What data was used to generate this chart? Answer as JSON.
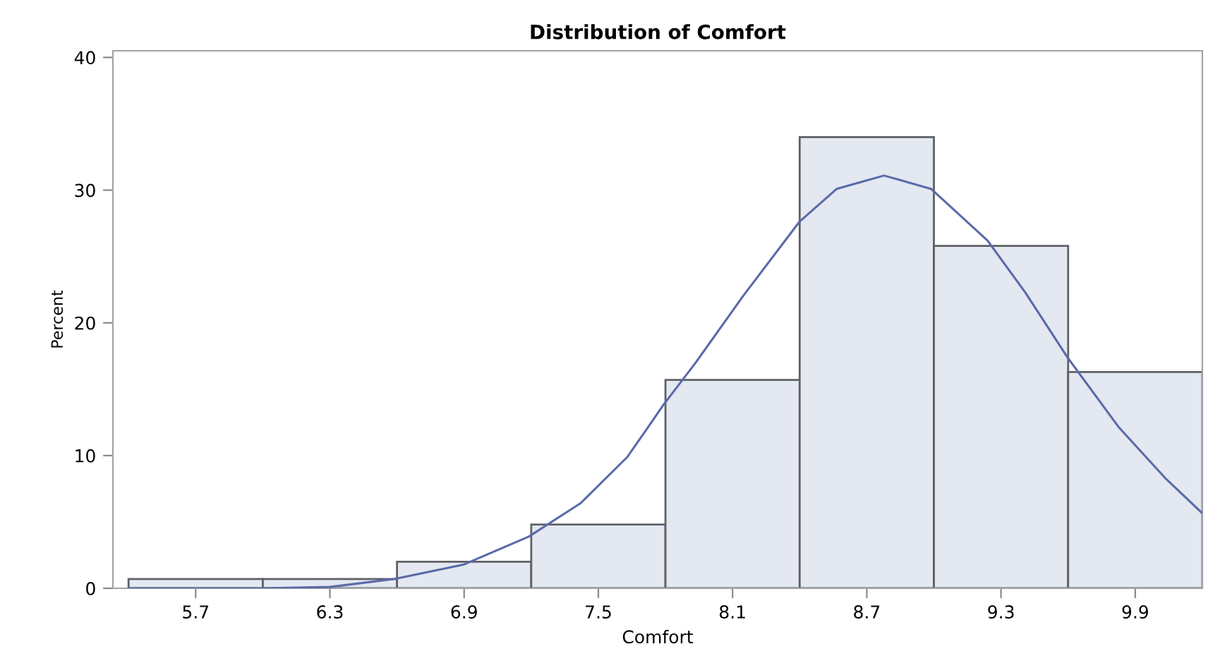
{
  "chart_data": {
    "type": "histogram",
    "title": "Distribution of Comfort",
    "xlabel": "Comfort",
    "ylabel": "Percent",
    "bins": [
      5.4,
      6.0,
      6.6,
      7.2,
      7.8,
      8.4,
      9.0,
      9.6,
      10.2
    ],
    "values": [
      0.7,
      0.7,
      2.0,
      4.8,
      15.7,
      34.0,
      25.8,
      16.3
    ],
    "color": "#e3e8f1",
    "series": [
      {
        "type": "line",
        "color": "#5a6aa8",
        "x": [
          5.4,
          6.0,
          6.3,
          6.59,
          6.9,
          7.19,
          7.42,
          7.63,
          7.725,
          7.79,
          7.935,
          8.146,
          8.398,
          8.566,
          8.777,
          8.987,
          9.24,
          9.408,
          9.597,
          9.828,
          10.04,
          10.197
        ],
        "values": [
          0.0,
          0.0,
          0.1,
          0.7,
          1.8,
          3.9,
          6.4,
          9.9,
          12.2,
          13.8,
          17.0,
          22.0,
          27.6,
          30.1,
          31.1,
          30.1,
          26.2,
          22.3,
          17.4,
          12.1,
          8.2,
          5.7
        ]
      }
    ],
    "xlim": [
      5.33,
      10.2
    ],
    "ylim": [
      0,
      40.5
    ],
    "xticks": [
      5.7,
      6.3,
      6.9,
      7.5,
      8.1,
      8.7,
      9.3,
      9.9
    ],
    "yticks": [
      0,
      10,
      20,
      30,
      40
    ],
    "grid": false,
    "legend": false
  }
}
